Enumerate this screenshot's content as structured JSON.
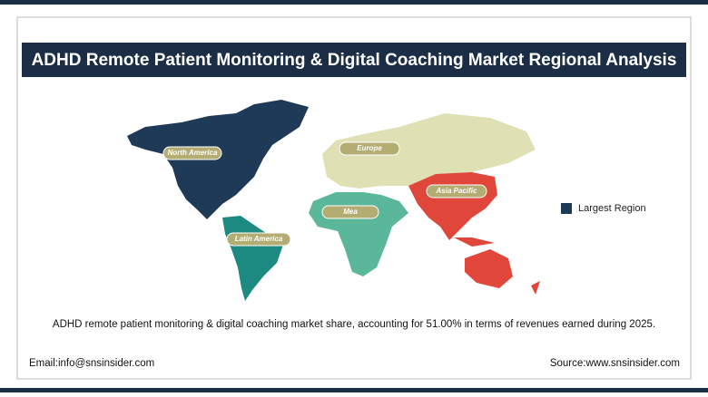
{
  "header": {
    "title": "ADHD Remote Patient Monitoring & Digital Coaching Market Regional Analysis"
  },
  "map": {
    "regions": [
      {
        "label": "North America"
      },
      {
        "label": "Europe"
      },
      {
        "label": "Asia Pacific"
      },
      {
        "label": "Mea"
      },
      {
        "label": "Latin America"
      }
    ],
    "legend": {
      "label": "Largest Region"
    }
  },
  "description": "ADHD remote patient monitoring & digital coaching market share, accounting for 51.00% in terms of revenues earned during 2025.",
  "footer": {
    "email": "Email:info@snsinsider.com",
    "source": "Source:www.snsinsider.com"
  }
}
